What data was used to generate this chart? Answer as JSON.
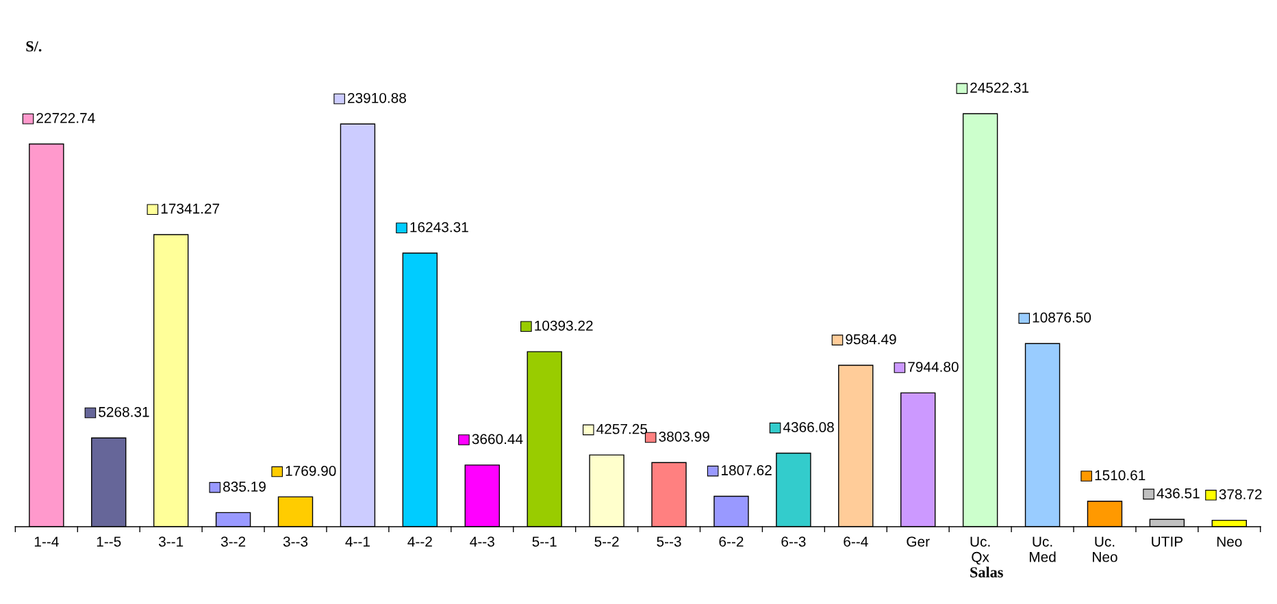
{
  "chart_data": {
    "type": "bar",
    "ylabel": "S/.",
    "xlabel": "Salas",
    "categories": [
      "1--4",
      "1--5",
      "3--1",
      "3--2",
      "3--3",
      "4--1",
      "4--2",
      "4--3",
      "5--1",
      "5--2",
      "5--3",
      "6--2",
      "6--3",
      "6--4",
      "Ger",
      "Uc.\nQx",
      "Uc.\nMed",
      "Uc.\nNeo",
      "UTIP",
      "Neo"
    ],
    "values": [
      22722.74,
      5268.31,
      17341.27,
      835.19,
      1769.9,
      23910.88,
      16243.31,
      3660.44,
      10393.22,
      4257.25,
      3803.99,
      1807.62,
      4366.08,
      9584.49,
      7944.8,
      24522.31,
      10876.5,
      1510.61,
      436.51,
      378.72
    ],
    "value_labels": [
      "22722.74",
      "5268.31",
      "17341.27",
      "835.19",
      "1769.90",
      "23910.88",
      "16243.31",
      "3660.44",
      "10393.22",
      "4257.25",
      "3803.99",
      "1807.62",
      "4366.08",
      "9584.49",
      "7944.80",
      "24522.31",
      "10876.50",
      "1510.61",
      "436.51",
      "378.72"
    ],
    "colors": [
      "#ff99cc",
      "#666699",
      "#ffff99",
      "#9999ff",
      "#ffcc00",
      "#ccccff",
      "#00ccff",
      "#ff00ff",
      "#99cc00",
      "#ffffcc",
      "#ff8080",
      "#9999ff",
      "#33cccc",
      "#ffcc99",
      "#cc99ff",
      "#ccffcc",
      "#99ccff",
      "#ff9900",
      "#c0c0c0",
      "#ffff00"
    ],
    "grid": false,
    "legend": false
  }
}
